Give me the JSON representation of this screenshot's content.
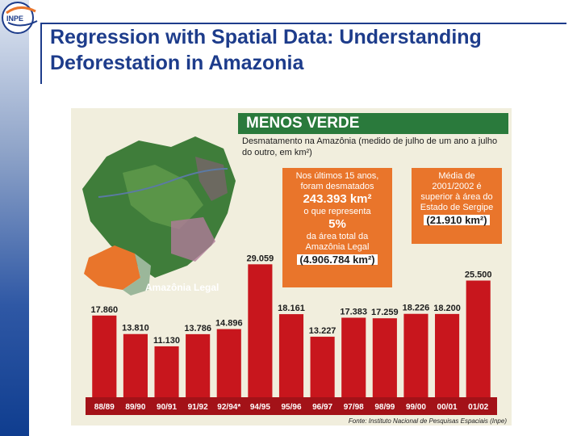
{
  "slide": {
    "title": "Regression with Spatial Data: Understanding Deforestation in Amazonia",
    "logo_text": "INPE"
  },
  "figure": {
    "banner": "MENOS VERDE",
    "subtitle": "Desmatamento na Amazônia (medido de julho de um ano a julho do outro, em km²)",
    "map_label": "Amazônia Legal",
    "source": "Fonte: Instituto Nacional de Pesquisas Espaciais (Inpe)",
    "callout1": {
      "line1": "Nos últimos 15 anos,",
      "line2": "foram desmatados",
      "value": "243.393 km²",
      "line3": "o que representa",
      "percent": "5%",
      "line4": "da área total da",
      "line5": "Amazônia Legal",
      "area": "(4.906.784 km²)"
    },
    "callout2": {
      "line1": "Média de",
      "line2": "2001/2002 é",
      "line3": "superior à área do",
      "line4": "Estado de Sergipe",
      "value": "(21.910 km²)"
    }
  },
  "chart_data": {
    "type": "bar",
    "title": "MENOS VERDE",
    "categories": [
      "88/89",
      "89/90",
      "90/91",
      "91/92",
      "92/94*",
      "94/95",
      "95/96",
      "96/97",
      "97/98",
      "98/99",
      "99/00",
      "00/01",
      "01/02"
    ],
    "values": [
      17860,
      13810,
      11130,
      13786,
      14896,
      29059,
      18161,
      13227,
      17383,
      17259,
      18226,
      18200,
      25500
    ],
    "value_labels": [
      "17.860",
      "13.810",
      "11.130",
      "13.786",
      "14.896",
      "29.059",
      "18.161",
      "13.227",
      "17.383",
      "17.259",
      "18.226",
      "18.200",
      "25.500"
    ],
    "ylim": [
      0,
      30000
    ],
    "grid": false,
    "colors": {
      "bar": "#c8161d",
      "highlight": "#d9261f",
      "banner": "#2a7a3c",
      "callout": "#e9752b",
      "axis_band": "#a31218"
    }
  }
}
